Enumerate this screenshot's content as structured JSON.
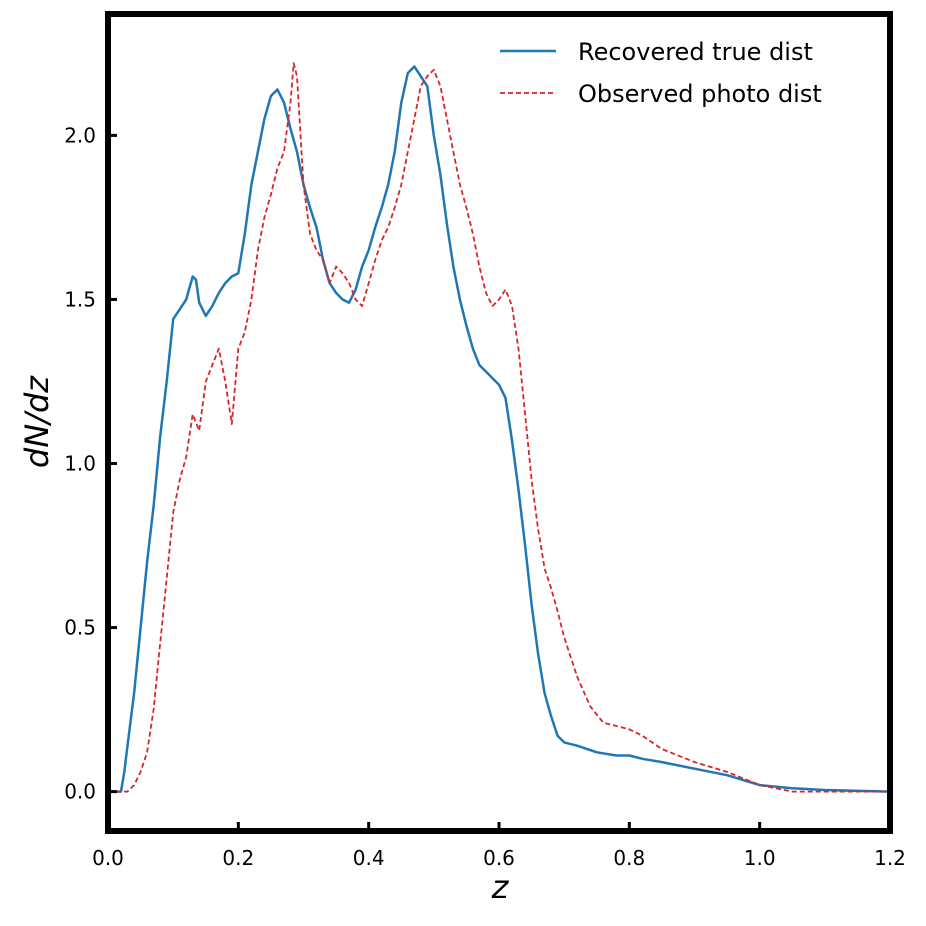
{
  "chart_data": {
    "type": "line",
    "title": "",
    "xlabel": "z",
    "ylabel": "dN/dz",
    "xlim": [
      0.0,
      1.2
    ],
    "ylim": [
      -0.12,
      2.37
    ],
    "xticks": [
      "0.0",
      "0.2",
      "0.4",
      "0.6",
      "0.8",
      "1.0",
      "1.2"
    ],
    "yticks": [
      "0.0",
      "0.5",
      "1.0",
      "1.5",
      "2.0"
    ],
    "grid": false,
    "legend_position": "top-right",
    "series": [
      {
        "name": "Recovered true dist",
        "color": "#1f77b4",
        "style": "solid",
        "x": [
          0.0,
          0.01,
          0.02,
          0.025,
          0.03,
          0.04,
          0.05,
          0.06,
          0.07,
          0.08,
          0.09,
          0.1,
          0.11,
          0.12,
          0.13,
          0.135,
          0.14,
          0.15,
          0.16,
          0.17,
          0.18,
          0.19,
          0.2,
          0.21,
          0.22,
          0.23,
          0.24,
          0.25,
          0.26,
          0.27,
          0.28,
          0.29,
          0.3,
          0.31,
          0.32,
          0.33,
          0.34,
          0.35,
          0.36,
          0.37,
          0.38,
          0.39,
          0.4,
          0.41,
          0.42,
          0.43,
          0.44,
          0.45,
          0.46,
          0.47,
          0.48,
          0.49,
          0.5,
          0.51,
          0.52,
          0.53,
          0.54,
          0.55,
          0.56,
          0.57,
          0.58,
          0.59,
          0.6,
          0.61,
          0.62,
          0.63,
          0.64,
          0.65,
          0.66,
          0.67,
          0.68,
          0.69,
          0.7,
          0.72,
          0.75,
          0.78,
          0.8,
          0.82,
          0.85,
          0.9,
          0.95,
          1.0,
          1.05,
          1.1,
          1.2
        ],
        "y": [
          0.0,
          0.0,
          0.0,
          0.06,
          0.14,
          0.3,
          0.5,
          0.7,
          0.87,
          1.08,
          1.25,
          1.44,
          1.47,
          1.5,
          1.57,
          1.56,
          1.49,
          1.45,
          1.48,
          1.52,
          1.55,
          1.57,
          1.58,
          1.7,
          1.85,
          1.95,
          2.05,
          2.12,
          2.14,
          2.1,
          2.02,
          1.95,
          1.85,
          1.78,
          1.72,
          1.62,
          1.55,
          1.52,
          1.5,
          1.49,
          1.53,
          1.6,
          1.65,
          1.72,
          1.78,
          1.85,
          1.95,
          2.1,
          2.19,
          2.21,
          2.18,
          2.15,
          2.0,
          1.88,
          1.73,
          1.6,
          1.5,
          1.42,
          1.35,
          1.3,
          1.28,
          1.26,
          1.24,
          1.2,
          1.07,
          0.92,
          0.75,
          0.57,
          0.42,
          0.3,
          0.23,
          0.17,
          0.15,
          0.14,
          0.12,
          0.11,
          0.11,
          0.1,
          0.09,
          0.07,
          0.05,
          0.02,
          0.01,
          0.005,
          0.0
        ]
      },
      {
        "name": "Observed photo dist",
        "color": "#d62728",
        "style": "dashed",
        "x": [
          0.0,
          0.03,
          0.04,
          0.05,
          0.06,
          0.07,
          0.08,
          0.09,
          0.1,
          0.11,
          0.12,
          0.13,
          0.14,
          0.15,
          0.16,
          0.17,
          0.18,
          0.19,
          0.2,
          0.21,
          0.22,
          0.23,
          0.24,
          0.25,
          0.26,
          0.27,
          0.28,
          0.285,
          0.29,
          0.3,
          0.31,
          0.32,
          0.33,
          0.34,
          0.35,
          0.36,
          0.37,
          0.38,
          0.39,
          0.4,
          0.41,
          0.42,
          0.43,
          0.44,
          0.45,
          0.46,
          0.47,
          0.48,
          0.49,
          0.5,
          0.51,
          0.52,
          0.53,
          0.54,
          0.55,
          0.56,
          0.57,
          0.58,
          0.59,
          0.6,
          0.61,
          0.62,
          0.63,
          0.64,
          0.65,
          0.66,
          0.67,
          0.68,
          0.69,
          0.7,
          0.72,
          0.74,
          0.76,
          0.78,
          0.8,
          0.82,
          0.85,
          0.9,
          0.95,
          1.0,
          1.05,
          1.1,
          1.2
        ],
        "y": [
          0.0,
          0.0,
          0.02,
          0.06,
          0.12,
          0.25,
          0.45,
          0.65,
          0.85,
          0.95,
          1.02,
          1.15,
          1.1,
          1.25,
          1.3,
          1.35,
          1.25,
          1.12,
          1.35,
          1.4,
          1.5,
          1.65,
          1.75,
          1.82,
          1.9,
          1.95,
          2.1,
          2.22,
          2.18,
          1.85,
          1.7,
          1.65,
          1.62,
          1.55,
          1.6,
          1.58,
          1.55,
          1.5,
          1.48,
          1.55,
          1.62,
          1.68,
          1.72,
          1.78,
          1.85,
          1.95,
          2.05,
          2.15,
          2.18,
          2.2,
          2.15,
          2.05,
          1.95,
          1.85,
          1.78,
          1.7,
          1.6,
          1.52,
          1.48,
          1.5,
          1.53,
          1.48,
          1.35,
          1.15,
          0.95,
          0.8,
          0.68,
          0.62,
          0.55,
          0.47,
          0.35,
          0.26,
          0.21,
          0.2,
          0.19,
          0.17,
          0.13,
          0.09,
          0.06,
          0.02,
          0.0,
          0.0,
          0.0
        ]
      }
    ]
  }
}
